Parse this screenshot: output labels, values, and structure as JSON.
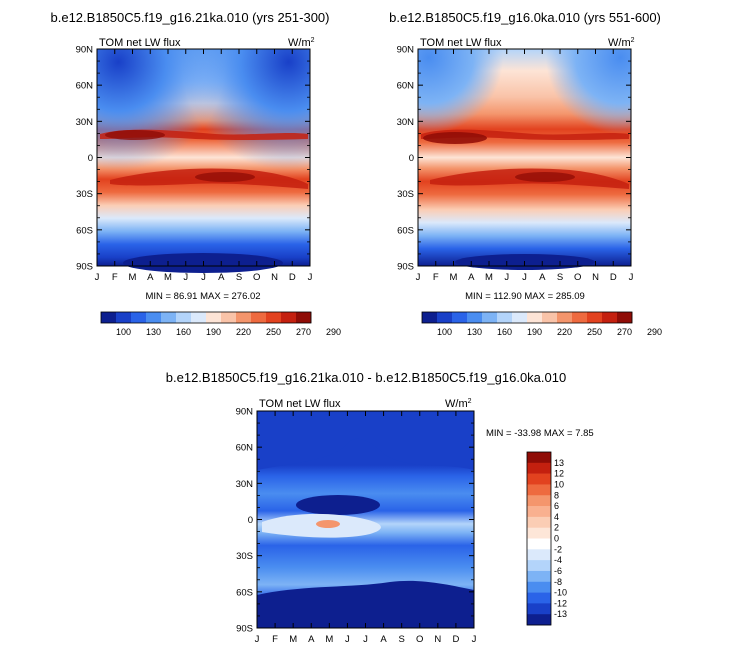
{
  "chart_data": [
    {
      "type": "heatmap",
      "title": "b.e12.B1850C5.f19_g16.21ka.010 (yrs 251-300)",
      "variable": "TOM net LW flux",
      "units": "W/m",
      "units_sup": "2",
      "x_labels": [
        "J",
        "F",
        "M",
        "A",
        "M",
        "J",
        "J",
        "A",
        "S",
        "O",
        "N",
        "D",
        "J"
      ],
      "y_labels": [
        "90N",
        "60N",
        "30N",
        "0",
        "30S",
        "60S",
        "90S"
      ],
      "y_values": [
        90,
        60,
        30,
        0,
        -30,
        -60,
        -90
      ],
      "stats": "MIN = 86.91 MAX = 276.02",
      "min": 86.91,
      "max": 276.02,
      "palette": "blue-white-red",
      "colorbar_levels": [
        "100",
        "130",
        "160",
        "190",
        "220",
        "250",
        "270",
        "290"
      ],
      "colorbar_colors": [
        "#0d1f8f",
        "#1940c8",
        "#2a63e8",
        "#4a8df0",
        "#7db3f5",
        "#b3d4fa",
        "#dbe9fb",
        "#fde4d6",
        "#f9c3a8",
        "#f4956c",
        "#ee6a3f",
        "#e2421f",
        "#c4200f",
        "#8f0c06"
      ]
    },
    {
      "type": "heatmap",
      "title": "b.e12.B1850C5.f19_g16.0ka.010 (yrs 551-600)",
      "variable": "TOM net LW flux",
      "units": "W/m",
      "units_sup": "2",
      "x_labels": [
        "J",
        "F",
        "M",
        "A",
        "M",
        "J",
        "J",
        "A",
        "S",
        "O",
        "N",
        "D",
        "J"
      ],
      "y_labels": [
        "90N",
        "60N",
        "30N",
        "0",
        "30S",
        "60S",
        "90S"
      ],
      "y_values": [
        90,
        60,
        30,
        0,
        -30,
        -60,
        -90
      ],
      "stats": "MIN = 112.90 MAX = 285.09",
      "min": 112.9,
      "max": 285.09,
      "palette": "blue-white-red",
      "colorbar_levels": [
        "100",
        "130",
        "160",
        "190",
        "220",
        "250",
        "270",
        "290"
      ],
      "colorbar_colors": [
        "#0d1f8f",
        "#1940c8",
        "#2a63e8",
        "#4a8df0",
        "#7db3f5",
        "#b3d4fa",
        "#dbe9fb",
        "#fde4d6",
        "#f9c3a8",
        "#f4956c",
        "#ee6a3f",
        "#e2421f",
        "#c4200f",
        "#8f0c06"
      ]
    },
    {
      "type": "heatmap",
      "title": "b.e12.B1850C5.f19_g16.21ka.010 - b.e12.B1850C5.f19_g16.0ka.010",
      "variable": "TOM net LW flux",
      "units": "W/m",
      "units_sup": "2",
      "x_labels": [
        "J",
        "F",
        "M",
        "A",
        "M",
        "J",
        "J",
        "A",
        "S",
        "O",
        "N",
        "D",
        "J"
      ],
      "y_labels": [
        "90N",
        "60N",
        "30N",
        "0",
        "30S",
        "60S",
        "90S"
      ],
      "y_values": [
        90,
        60,
        30,
        0,
        -30,
        -60,
        -90
      ],
      "stats": "MIN = -33.98 MAX =   7.85",
      "min": -33.98,
      "max": 7.85,
      "palette": "difference",
      "colorbar_levels": [
        "13",
        "12",
        "10",
        "8",
        "6",
        "4",
        "2",
        "0",
        "-2",
        "-4",
        "-6",
        "-8",
        "-10",
        "-12",
        "-13"
      ],
      "colorbar_colors": [
        "#8f0c06",
        "#c4200f",
        "#e2421f",
        "#ee6a3f",
        "#f4956c",
        "#f9b08f",
        "#fbcdb4",
        "#fde6d8",
        "#ffffff",
        "#dbe9fb",
        "#b3d4fa",
        "#7db3f5",
        "#4a8df0",
        "#2a63e8",
        "#1940c8",
        "#0d1f8f"
      ]
    }
  ]
}
